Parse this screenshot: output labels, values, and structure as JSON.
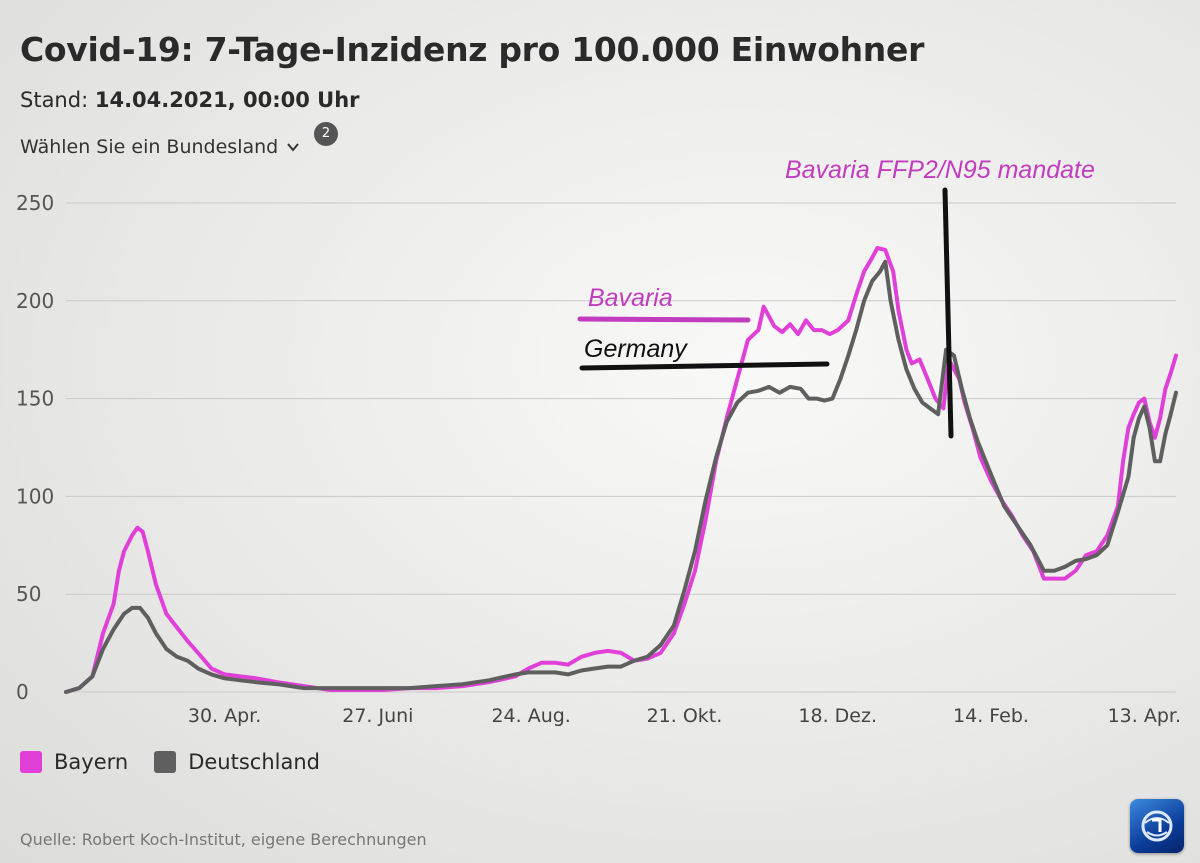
{
  "header": {
    "title": "Covid-19: 7-Tage-Inzidenz pro 100.000 Einwohner",
    "stand_label": "Stand:",
    "stand_value": "14.04.2021, 00:00 Uhr",
    "selector_label": "Wählen Sie ein Bundesland",
    "badge": "2"
  },
  "legend": [
    {
      "label": "Bayern",
      "color": "#e040d8"
    },
    {
      "label": "Deutschland",
      "color": "#5f5f5f"
    }
  ],
  "source": "Quelle: Robert Koch-Institut, eigene Berechnungen",
  "logo": {
    "icon": "ard-tagesschau-logo-icon"
  },
  "annotations": {
    "bavaria": "Bavaria",
    "germany": "Germany",
    "mandate": "Bavaria FFP2/N95 mandate"
  },
  "chart_data": {
    "type": "line",
    "title": "Covid-19: 7-Tage-Inzidenz pro 100.000 Einwohner",
    "xlabel": "",
    "ylabel": "",
    "ylim": [
      0,
      250
    ],
    "yticks": [
      0,
      50,
      100,
      150,
      200,
      250
    ],
    "xlim_days_since_2020_03_01": [
      0,
      408
    ],
    "xticks": [
      {
        "label": "30. Apr.",
        "day": 60
      },
      {
        "label": "27. Juni",
        "day": 118
      },
      {
        "label": "24. Aug.",
        "day": 176
      },
      {
        "label": "21. Okt.",
        "day": 234
      },
      {
        "label": "18. Dez.",
        "day": 292
      },
      {
        "label": "14. Feb.",
        "day": 350
      },
      {
        "label": "13. Apr.",
        "day": 408
      }
    ],
    "grid": true,
    "legend_position": "bottom-left",
    "series": [
      {
        "name": "Bayern",
        "color": "#e040d8",
        "points": [
          [
            0,
            0
          ],
          [
            5,
            2
          ],
          [
            10,
            8
          ],
          [
            14,
            30
          ],
          [
            18,
            45
          ],
          [
            20,
            62
          ],
          [
            22,
            72
          ],
          [
            25,
            80
          ],
          [
            27,
            84
          ],
          [
            29,
            82
          ],
          [
            31,
            72
          ],
          [
            34,
            55
          ],
          [
            38,
            40
          ],
          [
            42,
            33
          ],
          [
            46,
            26
          ],
          [
            50,
            20
          ],
          [
            55,
            12
          ],
          [
            60,
            9
          ],
          [
            66,
            8
          ],
          [
            72,
            7
          ],
          [
            80,
            5
          ],
          [
            90,
            3
          ],
          [
            100,
            1
          ],
          [
            110,
            1
          ],
          [
            120,
            1
          ],
          [
            130,
            2
          ],
          [
            140,
            2
          ],
          [
            150,
            3
          ],
          [
            160,
            5
          ],
          [
            170,
            8
          ],
          [
            175,
            12
          ],
          [
            180,
            15
          ],
          [
            185,
            15
          ],
          [
            190,
            14
          ],
          [
            195,
            18
          ],
          [
            200,
            20
          ],
          [
            205,
            21
          ],
          [
            210,
            20
          ],
          [
            215,
            16
          ],
          [
            220,
            17
          ],
          [
            225,
            20
          ],
          [
            230,
            30
          ],
          [
            234,
            45
          ],
          [
            238,
            62
          ],
          [
            242,
            88
          ],
          [
            246,
            118
          ],
          [
            250,
            140
          ],
          [
            254,
            160
          ],
          [
            258,
            180
          ],
          [
            262,
            185
          ],
          [
            264,
            197
          ],
          [
            266,
            192
          ],
          [
            268,
            187
          ],
          [
            271,
            184
          ],
          [
            274,
            188
          ],
          [
            277,
            183
          ],
          [
            280,
            190
          ],
          [
            283,
            185
          ],
          [
            286,
            185
          ],
          [
            289,
            183
          ],
          [
            292,
            185
          ],
          [
            296,
            190
          ],
          [
            299,
            203
          ],
          [
            302,
            215
          ],
          [
            305,
            222
          ],
          [
            307,
            227
          ],
          [
            310,
            226
          ],
          [
            313,
            215
          ],
          [
            315,
            195
          ],
          [
            318,
            175
          ],
          [
            320,
            168
          ],
          [
            323,
            170
          ],
          [
            326,
            160
          ],
          [
            329,
            150
          ],
          [
            332,
            145
          ],
          [
            334,
            170
          ],
          [
            336,
            165
          ],
          [
            338,
            160
          ],
          [
            340,
            148
          ],
          [
            343,
            135
          ],
          [
            346,
            120
          ],
          [
            350,
            108
          ],
          [
            354,
            98
          ],
          [
            358,
            90
          ],
          [
            362,
            80
          ],
          [
            366,
            72
          ],
          [
            370,
            58
          ],
          [
            374,
            58
          ],
          [
            378,
            58
          ],
          [
            382,
            62
          ],
          [
            386,
            70
          ],
          [
            390,
            72
          ],
          [
            394,
            80
          ],
          [
            398,
            95
          ],
          [
            400,
            118
          ],
          [
            402,
            135
          ],
          [
            404,
            142
          ],
          [
            406,
            148
          ],
          [
            408,
            150
          ],
          [
            410,
            138
          ],
          [
            412,
            130
          ],
          [
            414,
            140
          ],
          [
            416,
            155
          ],
          [
            418,
            163
          ],
          [
            420,
            172
          ]
        ]
      },
      {
        "name": "Deutschland",
        "color": "#5f5f5f",
        "points": [
          [
            0,
            0
          ],
          [
            5,
            2
          ],
          [
            10,
            8
          ],
          [
            14,
            22
          ],
          [
            18,
            32
          ],
          [
            22,
            40
          ],
          [
            25,
            43
          ],
          [
            28,
            43
          ],
          [
            31,
            38
          ],
          [
            34,
            30
          ],
          [
            38,
            22
          ],
          [
            42,
            18
          ],
          [
            46,
            16
          ],
          [
            50,
            12
          ],
          [
            55,
            9
          ],
          [
            60,
            7
          ],
          [
            66,
            6
          ],
          [
            72,
            5
          ],
          [
            80,
            4
          ],
          [
            90,
            2
          ],
          [
            100,
            2
          ],
          [
            110,
            2
          ],
          [
            120,
            2
          ],
          [
            130,
            2
          ],
          [
            140,
            3
          ],
          [
            150,
            4
          ],
          [
            160,
            6
          ],
          [
            170,
            9
          ],
          [
            175,
            10
          ],
          [
            180,
            10
          ],
          [
            185,
            10
          ],
          [
            190,
            9
          ],
          [
            195,
            11
          ],
          [
            200,
            12
          ],
          [
            205,
            13
          ],
          [
            210,
            13
          ],
          [
            215,
            16
          ],
          [
            220,
            18
          ],
          [
            225,
            24
          ],
          [
            230,
            34
          ],
          [
            234,
            52
          ],
          [
            238,
            72
          ],
          [
            242,
            98
          ],
          [
            246,
            120
          ],
          [
            250,
            138
          ],
          [
            254,
            148
          ],
          [
            258,
            153
          ],
          [
            262,
            154
          ],
          [
            266,
            156
          ],
          [
            270,
            153
          ],
          [
            274,
            156
          ],
          [
            278,
            155
          ],
          [
            281,
            150
          ],
          [
            284,
            150
          ],
          [
            287,
            149
          ],
          [
            290,
            150
          ],
          [
            293,
            160
          ],
          [
            296,
            172
          ],
          [
            299,
            185
          ],
          [
            302,
            200
          ],
          [
            305,
            210
          ],
          [
            308,
            215
          ],
          [
            310,
            220
          ],
          [
            312,
            200
          ],
          [
            315,
            180
          ],
          [
            318,
            165
          ],
          [
            321,
            155
          ],
          [
            324,
            148
          ],
          [
            327,
            145
          ],
          [
            330,
            142
          ],
          [
            333,
            175
          ],
          [
            336,
            172
          ],
          [
            339,
            155
          ],
          [
            342,
            140
          ],
          [
            345,
            128
          ],
          [
            348,
            118
          ],
          [
            351,
            108
          ],
          [
            355,
            95
          ],
          [
            360,
            85
          ],
          [
            365,
            75
          ],
          [
            370,
            62
          ],
          [
            374,
            62
          ],
          [
            378,
            64
          ],
          [
            382,
            67
          ],
          [
            386,
            68
          ],
          [
            390,
            70
          ],
          [
            394,
            75
          ],
          [
            398,
            92
          ],
          [
            402,
            110
          ],
          [
            404,
            130
          ],
          [
            406,
            140
          ],
          [
            408,
            146
          ],
          [
            410,
            135
          ],
          [
            412,
            118
          ],
          [
            414,
            118
          ],
          [
            416,
            132
          ],
          [
            418,
            142
          ],
          [
            420,
            153
          ]
        ]
      }
    ]
  }
}
